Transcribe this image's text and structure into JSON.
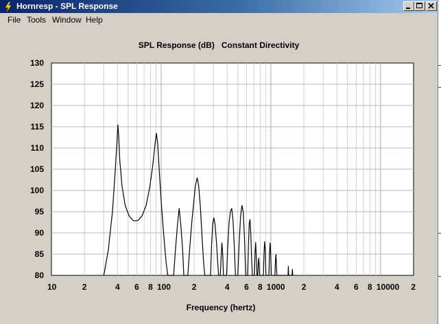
{
  "window": {
    "title": "Hornresp - SPL Response",
    "icon": "lightning-bolt-icon"
  },
  "menu": {
    "items": [
      "File",
      "Tools",
      "Window",
      "Help"
    ]
  },
  "plot": {
    "title": "SPL Response (dB)   Constant Directivity"
  },
  "chart_data": {
    "type": "line",
    "title": "SPL Response (dB)   Constant Directivity",
    "xlabel": "Frequency (hertz)",
    "ylabel": "",
    "x_scale": "log",
    "xlim": [
      10,
      20000
    ],
    "ylim": [
      80,
      130
    ],
    "grid": true,
    "x_tick_labels": [
      {
        "value": 10,
        "label": "10"
      },
      {
        "value": 20,
        "label": "2"
      },
      {
        "value": 40,
        "label": "4"
      },
      {
        "value": 60,
        "label": "6"
      },
      {
        "value": 80,
        "label": "8"
      },
      {
        "value": 100,
        "label": "100"
      },
      {
        "value": 200,
        "label": "2"
      },
      {
        "value": 400,
        "label": "4"
      },
      {
        "value": 600,
        "label": "6"
      },
      {
        "value": 800,
        "label": "8"
      },
      {
        "value": 1000,
        "label": "1000"
      },
      {
        "value": 2000,
        "label": "2"
      },
      {
        "value": 4000,
        "label": "4"
      },
      {
        "value": 6000,
        "label": "6"
      },
      {
        "value": 8000,
        "label": "8"
      },
      {
        "value": 10000,
        "label": "10000"
      },
      {
        "value": 20000,
        "label": "2"
      }
    ],
    "y_ticks": [
      80,
      85,
      90,
      95,
      100,
      105,
      110,
      115,
      120,
      125,
      130
    ],
    "series": [
      {
        "points": [
          [
            30,
            80
          ],
          [
            33,
            86
          ],
          [
            36,
            95
          ],
          [
            38,
            104
          ],
          [
            39.5,
            111
          ],
          [
            40.3,
            115.5
          ],
          [
            41,
            113
          ],
          [
            42,
            107
          ],
          [
            44,
            101
          ],
          [
            47,
            96.5
          ],
          [
            51,
            94
          ],
          [
            55,
            93
          ],
          [
            58,
            92.8
          ],
          [
            62,
            93
          ],
          [
            67,
            94
          ],
          [
            73,
            96.5
          ],
          [
            79,
            101
          ],
          [
            84,
            106
          ],
          [
            88,
            111
          ],
          [
            90.5,
            113.5
          ],
          [
            93,
            111
          ],
          [
            97,
            103
          ],
          [
            101,
            96
          ],
          [
            106,
            89
          ],
          [
            111,
            83
          ],
          [
            115,
            80
          ],
          [
            130,
            80
          ],
          [
            135,
            86
          ],
          [
            141,
            92
          ],
          [
            146,
            95.8
          ],
          [
            151,
            92
          ],
          [
            157,
            86
          ],
          [
            161,
            80
          ],
          [
            175,
            80
          ],
          [
            183,
            87
          ],
          [
            191,
            93
          ],
          [
            198,
            97
          ],
          [
            205,
            101
          ],
          [
            213,
            103
          ],
          [
            220,
            101
          ],
          [
            228,
            96
          ],
          [
            236,
            89
          ],
          [
            244,
            83
          ],
          [
            250,
            80
          ],
          [
            282,
            80
          ],
          [
            288,
            87
          ],
          [
            295,
            92
          ],
          [
            302,
            93.6
          ],
          [
            310,
            92
          ],
          [
            319,
            88
          ],
          [
            328,
            83
          ],
          [
            334,
            80
          ],
          [
            346,
            80
          ],
          [
            352,
            84
          ],
          [
            358,
            87.7
          ],
          [
            364,
            85
          ],
          [
            370,
            80
          ],
          [
            395,
            80
          ],
          [
            405,
            87
          ],
          [
            416,
            92.5
          ],
          [
            428,
            95
          ],
          [
            440,
            95.8
          ],
          [
            452,
            93
          ],
          [
            464,
            87
          ],
          [
            476,
            80
          ],
          [
            500,
            80
          ],
          [
            515,
            88
          ],
          [
            530,
            94
          ],
          [
            545,
            96.5
          ],
          [
            560,
            95
          ],
          [
            575,
            89
          ],
          [
            590,
            80
          ],
          [
            615,
            80
          ],
          [
            625,
            87
          ],
          [
            635,
            92
          ],
          [
            645,
            93.2
          ],
          [
            656,
            90
          ],
          [
            668,
            84
          ],
          [
            678,
            80
          ],
          [
            708,
            80
          ],
          [
            717,
            85
          ],
          [
            727,
            87.8
          ],
          [
            738,
            84
          ],
          [
            748,
            80
          ],
          [
            760,
            80
          ],
          [
            768,
            83
          ],
          [
            776,
            84.1
          ],
          [
            784,
            82
          ],
          [
            792,
            80
          ],
          [
            855,
            80
          ],
          [
            866,
            85
          ],
          [
            878,
            88
          ],
          [
            890,
            86
          ],
          [
            902,
            80
          ],
          [
            960,
            80
          ],
          [
            972,
            85
          ],
          [
            985,
            87.7
          ],
          [
            998,
            85
          ],
          [
            1010,
            80
          ],
          [
            1090,
            80
          ],
          [
            1102,
            83.5
          ],
          [
            1113,
            85
          ],
          [
            1124,
            82.5
          ],
          [
            1135,
            80
          ],
          [
            1435,
            80
          ],
          [
            1444,
            82.2
          ],
          [
            1453,
            80
          ],
          [
            1560,
            80
          ],
          [
            1572,
            81.5
          ],
          [
            1584,
            80
          ]
        ]
      }
    ]
  }
}
